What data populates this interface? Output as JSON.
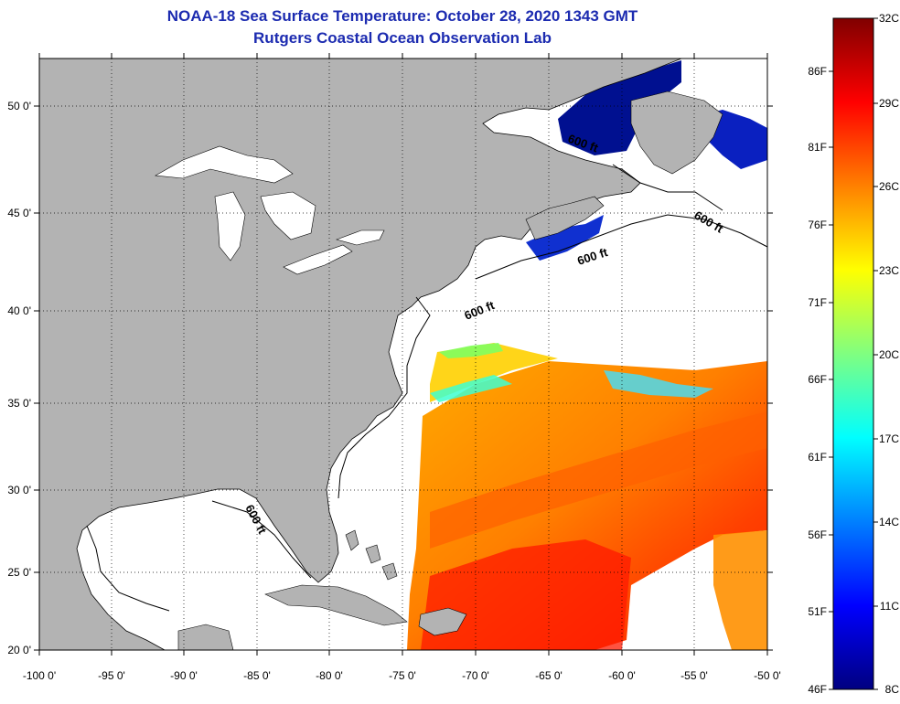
{
  "title": "NOAA-18 Sea Surface Temperature:  October 28, 2020 1343 GMT",
  "subtitle": "Rutgers Coastal Ocean Observation Lab",
  "longitude_labels": [
    "-100 0'",
    "-95 0'",
    "-90 0'",
    "-85 0'",
    "-80 0'",
    "-75 0'",
    "-70 0'",
    "-65 0'",
    "-60 0'",
    "-55 0'",
    "-50 0'"
  ],
  "latitude_labels": [
    "50 0'",
    "45 0'",
    "40 0'",
    "35 0'",
    "30 0'",
    "25 0'",
    "20 0'"
  ],
  "depth_contour_labels": [
    "600 ft",
    "600 ft",
    "600 ft",
    "600 ft",
    "600 ft"
  ],
  "colorbar": {
    "celsius_labels": [
      "32C",
      "29C",
      "26C",
      "23C",
      "20C",
      "17C",
      "14C",
      "11C",
      "8C"
    ],
    "fahrenheit_labels": [
      "86F",
      "81F",
      "76F",
      "71F",
      "66F",
      "61F",
      "56F",
      "51F",
      "46F"
    ],
    "colors": [
      "#000080",
      "#0000ff",
      "#0080ff",
      "#00ffff",
      "#80ff80",
      "#ffff00",
      "#ff8000",
      "#ff0000",
      "#800000"
    ]
  },
  "colors": {
    "land": "#b3b3b3",
    "water_no_data": "#ffffff",
    "title": "#1c2bb0"
  }
}
